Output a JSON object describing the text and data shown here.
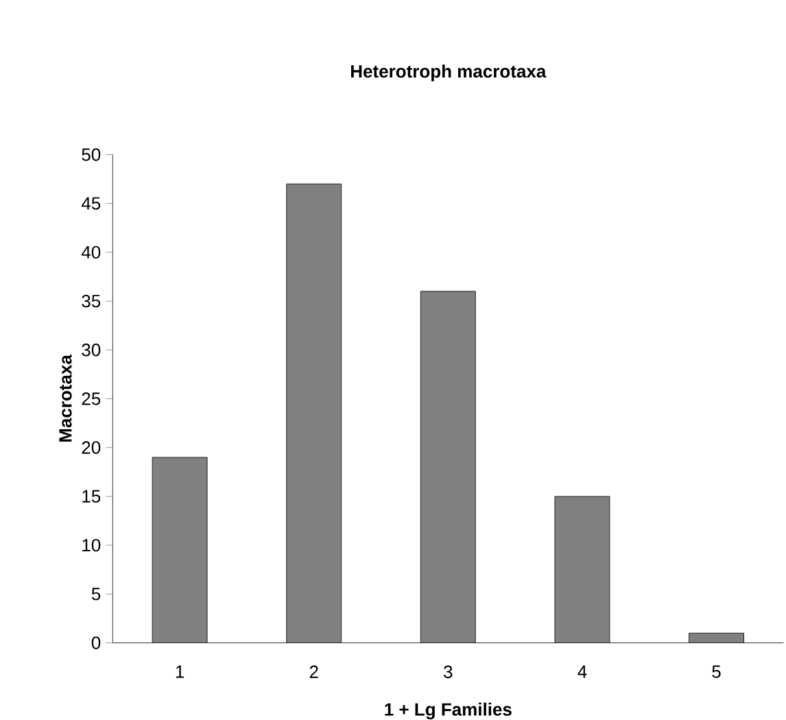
{
  "chart_data": {
    "type": "bar",
    "title": "Heterotroph macrotaxa",
    "xlabel": "1 + Lg Families",
    "ylabel": "Macrotaxa",
    "categories": [
      "1",
      "2",
      "3",
      "4",
      "5"
    ],
    "values": [
      19,
      47,
      36,
      15,
      1
    ],
    "color": "#808080",
    "ylim": [
      0,
      50
    ],
    "yticks": [
      0,
      5,
      10,
      15,
      20,
      25,
      30,
      35,
      40,
      45,
      50
    ],
    "grid": false
  }
}
